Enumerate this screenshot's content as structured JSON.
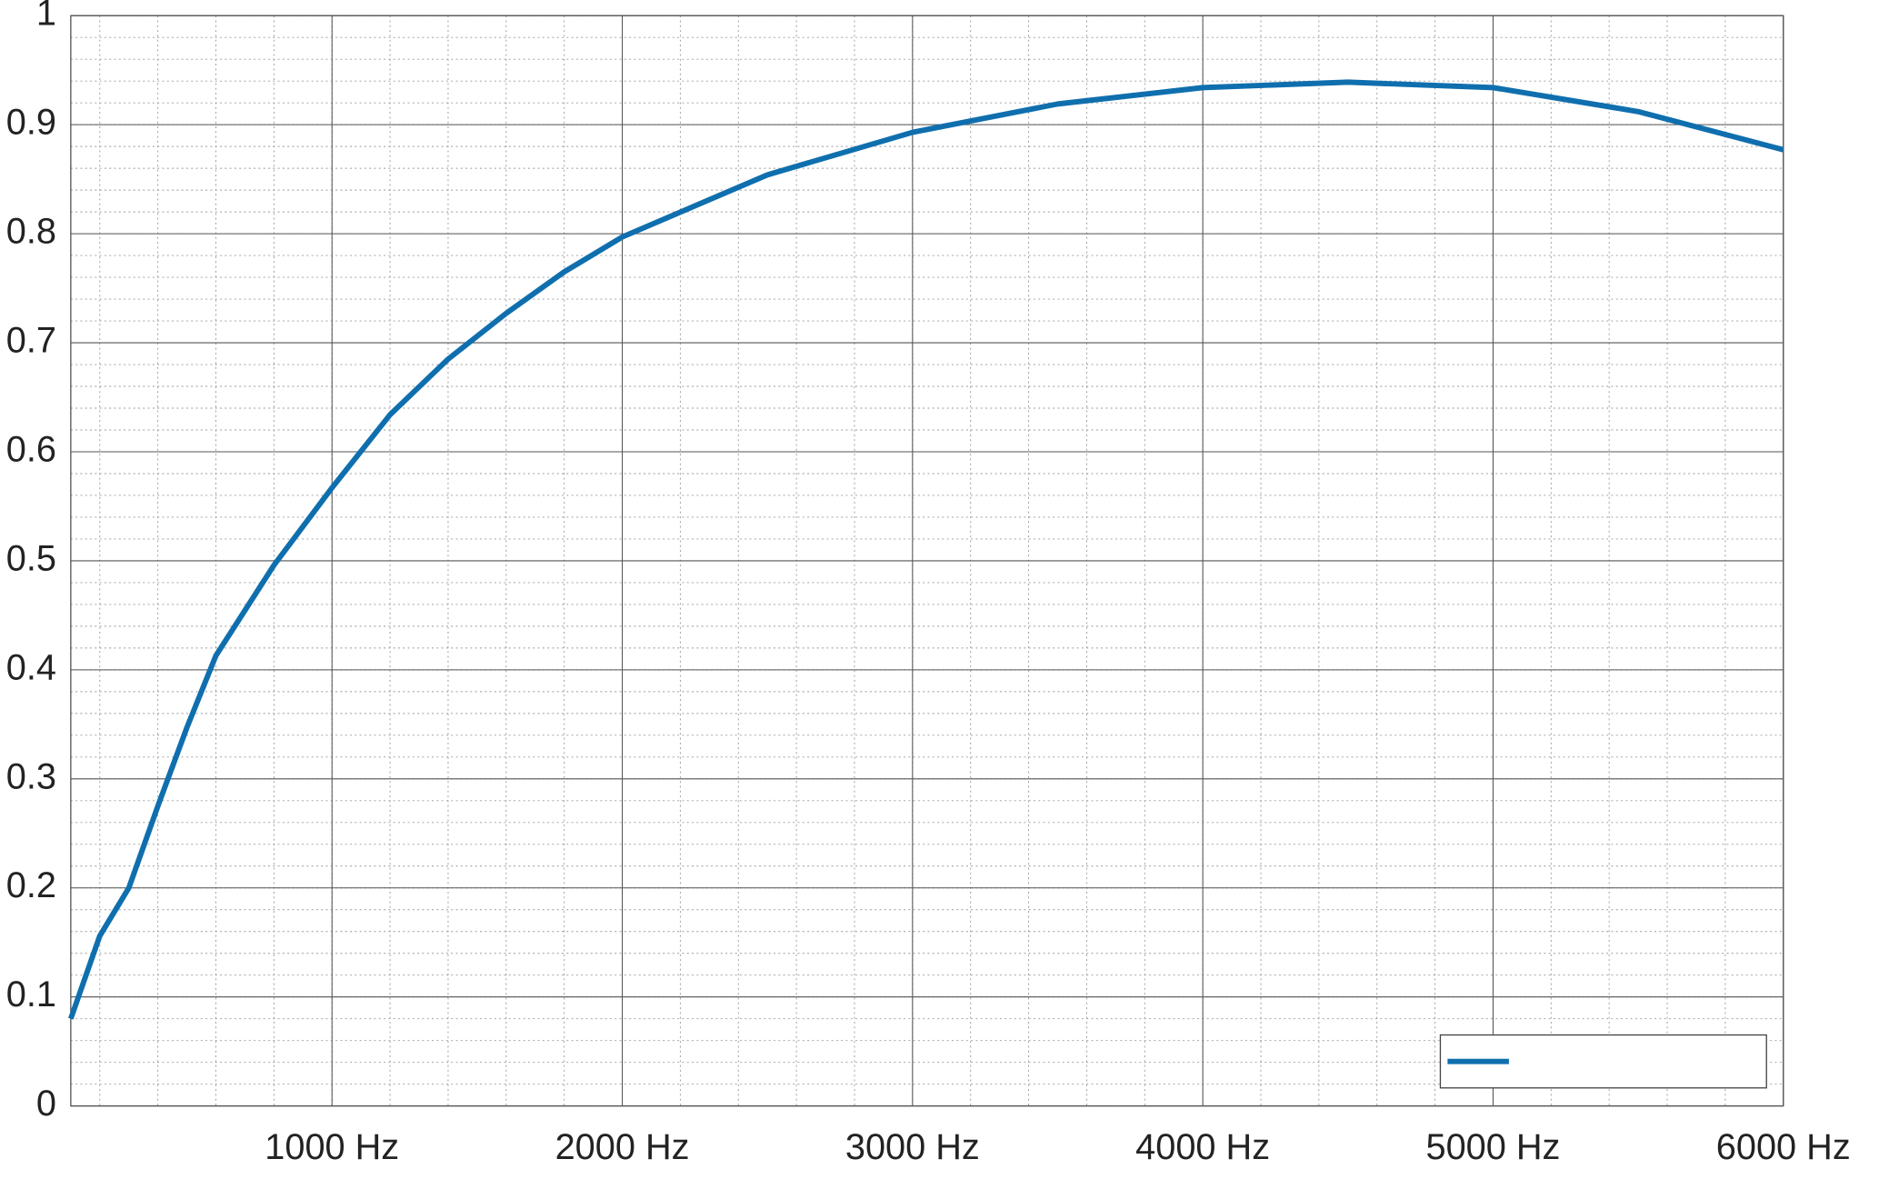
{
  "chart_data": {
    "type": "line",
    "x": [
      100,
      200,
      300,
      400,
      500,
      600,
      800,
      1000,
      1200,
      1400,
      1600,
      1800,
      2000,
      2500,
      3000,
      3500,
      4000,
      4500,
      5000,
      5500,
      6000
    ],
    "series": [
      {
        "color": "#0f6fae",
        "values": [
          0.08,
          0.156,
          0.2,
          0.275,
          0.347,
          0.413,
          0.496,
          0.567,
          0.634,
          0.685,
          0.727,
          0.765,
          0.797,
          0.854,
          0.893,
          0.919,
          0.934,
          0.939,
          0.934,
          0.912,
          0.877
        ]
      }
    ],
    "xlim": [
      100,
      6000
    ],
    "xticks": [
      {
        "value": 1000,
        "label": "1000 Hz"
      },
      {
        "value": 2000,
        "label": "2000 Hz"
      },
      {
        "value": 3000,
        "label": "3000 Hz"
      },
      {
        "value": 4000,
        "label": "4000 Hz"
      },
      {
        "value": 5000,
        "label": "5000 Hz"
      },
      {
        "value": 6000,
        "label": "6000 Hz"
      }
    ],
    "ylim": [
      0,
      1
    ],
    "yticks": [
      0,
      0.1,
      0.2,
      0.3,
      0.4,
      0.5,
      0.6,
      0.7,
      0.8,
      0.9,
      1
    ],
    "grid": true,
    "minor_grid": true,
    "legend": "lower right"
  }
}
